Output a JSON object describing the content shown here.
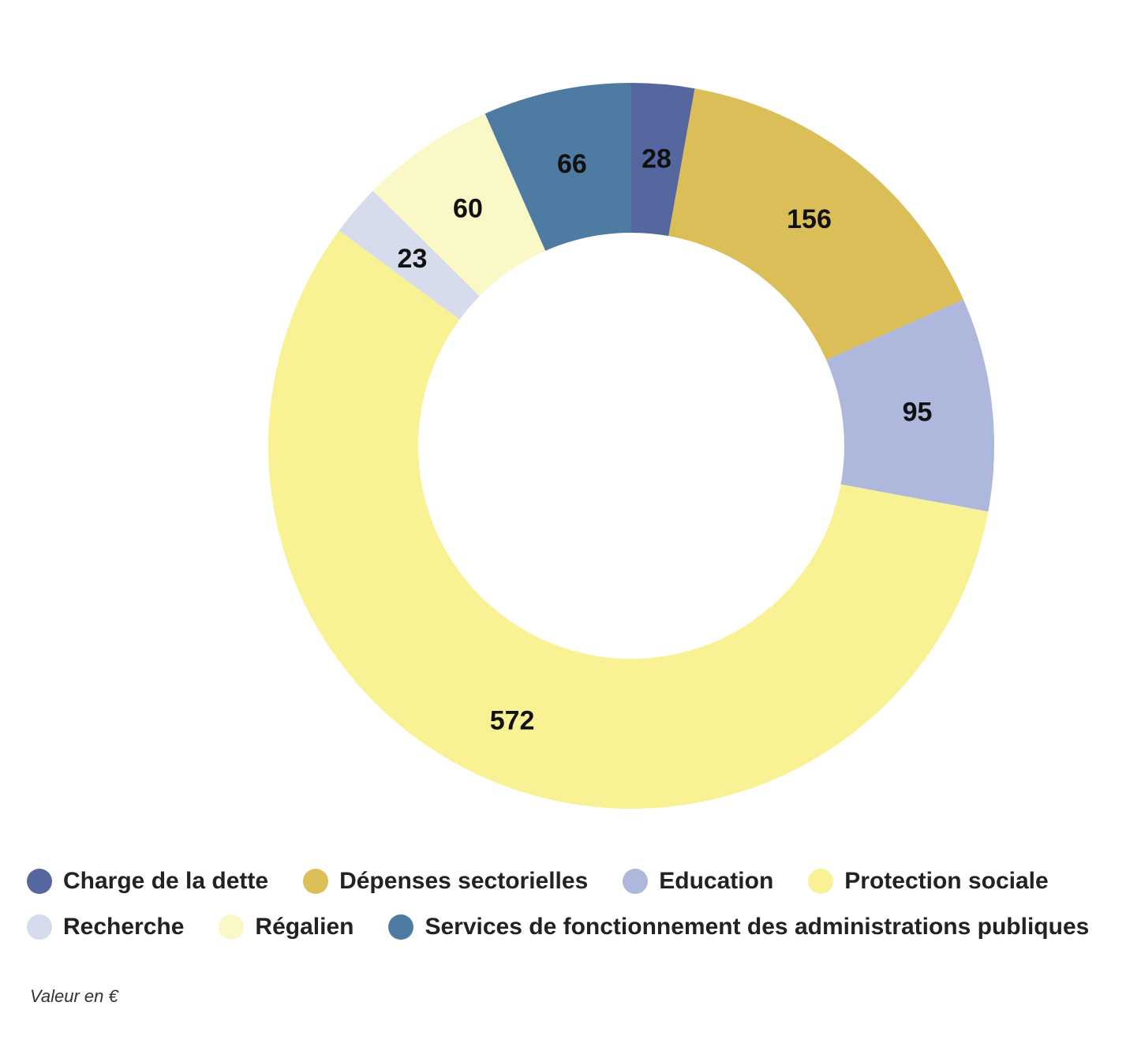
{
  "chart_data": {
    "type": "pie",
    "variant": "donut",
    "start_angle_deg": 0,
    "direction": "clockwise",
    "categories": [
      "Charge de la dette",
      "Dépenses sectorielles",
      "Education",
      "Protection sociale",
      "Recherche",
      "Régalien",
      "Services de fonctionnement des administrations publiques"
    ],
    "values": [
      28,
      156,
      95,
      572,
      23,
      60,
      66
    ],
    "colors": [
      "#56679f",
      "#dcbe59",
      "#aeb8dc",
      "#f8f294",
      "#d6dcec",
      "#fbf8c8",
      "#4e7ba2"
    ],
    "labels": [
      "28",
      "156",
      "95",
      "572",
      "23",
      "60",
      "66"
    ],
    "legend_placement": "bottom",
    "note": "Valeur en €"
  },
  "legend": {
    "rows": [
      [
        {
          "label": "Charge de la dette",
          "color": "#56679f"
        },
        {
          "label": "Dépenses sectorielles",
          "color": "#dcbe59"
        },
        {
          "label": "Education",
          "color": "#aeb8dc"
        },
        {
          "label": "Protection sociale",
          "color": "#f8f294"
        }
      ],
      [
        {
          "label": "Recherche",
          "color": "#d6dcec"
        },
        {
          "label": "Régalien",
          "color": "#fbf8c8"
        },
        {
          "label": "Services de fonctionnement des administrations publiques",
          "color": "#4e7ba2"
        }
      ]
    ]
  },
  "footnote": "Valeur en €"
}
